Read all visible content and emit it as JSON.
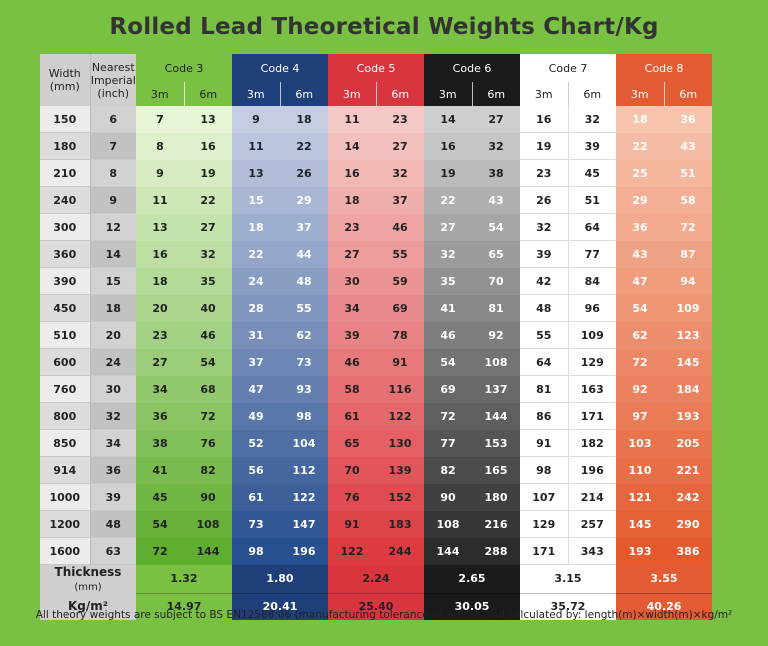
{
  "title": "Rolled Lead Theoretical Weights Chart/Kg",
  "header": {
    "width_label": "Width (mm)",
    "imperial_label": "Nearest Imperial (inch)",
    "codes": [
      "Code 3",
      "Code 4",
      "Code 5",
      "Code 6",
      "Code 7",
      "Code 8"
    ],
    "length_3m": "3m",
    "length_6m": "6m"
  },
  "colors": {
    "background": "#7ac143",
    "code3": "#7ac143",
    "code4": "#1f3f7a",
    "code5": "#d9353f",
    "code6": "#1b1b1b",
    "code7": "#ffffff",
    "code8": "#e35b33"
  },
  "rows": [
    {
      "width": "150",
      "imperial": "6",
      "values": [
        "7",
        "13",
        "9",
        "18",
        "11",
        "23",
        "14",
        "27",
        "16",
        "32",
        "18",
        "36"
      ]
    },
    {
      "width": "180",
      "imperial": "7",
      "values": [
        "8",
        "16",
        "11",
        "22",
        "14",
        "27",
        "16",
        "32",
        "19",
        "39",
        "22",
        "43"
      ]
    },
    {
      "width": "210",
      "imperial": "8",
      "values": [
        "9",
        "19",
        "13",
        "26",
        "16",
        "32",
        "19",
        "38",
        "23",
        "45",
        "25",
        "51"
      ]
    },
    {
      "width": "240",
      "imperial": "9",
      "values": [
        "11",
        "22",
        "15",
        "29",
        "18",
        "37",
        "22",
        "43",
        "26",
        "51",
        "29",
        "58"
      ]
    },
    {
      "width": "300",
      "imperial": "12",
      "values": [
        "13",
        "27",
        "18",
        "37",
        "23",
        "46",
        "27",
        "54",
        "32",
        "64",
        "36",
        "72"
      ]
    },
    {
      "width": "360",
      "imperial": "14",
      "values": [
        "16",
        "32",
        "22",
        "44",
        "27",
        "55",
        "32",
        "65",
        "39",
        "77",
        "43",
        "87"
      ]
    },
    {
      "width": "390",
      "imperial": "15",
      "values": [
        "18",
        "35",
        "24",
        "48",
        "30",
        "59",
        "35",
        "70",
        "42",
        "84",
        "47",
        "94"
      ]
    },
    {
      "width": "450",
      "imperial": "18",
      "values": [
        "20",
        "40",
        "28",
        "55",
        "34",
        "69",
        "41",
        "81",
        "48",
        "96",
        "54",
        "109"
      ]
    },
    {
      "width": "510",
      "imperial": "20",
      "values": [
        "23",
        "46",
        "31",
        "62",
        "39",
        "78",
        "46",
        "92",
        "55",
        "109",
        "62",
        "123"
      ]
    },
    {
      "width": "600",
      "imperial": "24",
      "values": [
        "27",
        "54",
        "37",
        "73",
        "46",
        "91",
        "54",
        "108",
        "64",
        "129",
        "72",
        "145"
      ]
    },
    {
      "width": "760",
      "imperial": "30",
      "values": [
        "34",
        "68",
        "47",
        "93",
        "58",
        "116",
        "69",
        "137",
        "81",
        "163",
        "92",
        "184"
      ]
    },
    {
      "width": "800",
      "imperial": "32",
      "values": [
        "36",
        "72",
        "49",
        "98",
        "61",
        "122",
        "72",
        "144",
        "86",
        "171",
        "97",
        "193"
      ]
    },
    {
      "width": "850",
      "imperial": "34",
      "values": [
        "38",
        "76",
        "52",
        "104",
        "65",
        "130",
        "77",
        "153",
        "91",
        "182",
        "103",
        "205"
      ]
    },
    {
      "width": "914",
      "imperial": "36",
      "values": [
        "41",
        "82",
        "56",
        "112",
        "70",
        "139",
        "82",
        "165",
        "98",
        "196",
        "110",
        "221"
      ]
    },
    {
      "width": "1000",
      "imperial": "39",
      "values": [
        "45",
        "90",
        "61",
        "122",
        "76",
        "152",
        "90",
        "180",
        "107",
        "214",
        "121",
        "242"
      ]
    },
    {
      "width": "1200",
      "imperial": "48",
      "values": [
        "54",
        "108",
        "73",
        "147",
        "91",
        "183",
        "108",
        "216",
        "129",
        "257",
        "145",
        "290"
      ]
    },
    {
      "width": "1600",
      "imperial": "63",
      "values": [
        "72",
        "144",
        "98",
        "196",
        "122",
        "244",
        "144",
        "288",
        "171",
        "343",
        "193",
        "386"
      ]
    }
  ],
  "thickness": {
    "label": "Thickness",
    "unit": "(mm)",
    "values": [
      "1.32",
      "1.80",
      "2.24",
      "2.65",
      "3.15",
      "3.55"
    ]
  },
  "kgm": {
    "label": "Kg/m²",
    "values": [
      "14.97",
      "20.41",
      "25.40",
      "30.05",
      "35.72",
      "40.26"
    ]
  },
  "note": "All theory weights are subject to BS EN12588:06 (manufacturing tolerance of ± 5%), and calculated by: length(m)×width(m)×kg/m²"
}
